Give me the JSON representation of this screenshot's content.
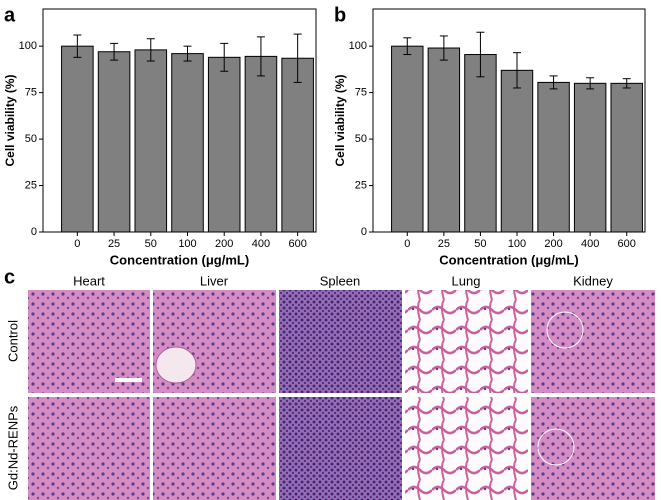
{
  "chart_data": [
    {
      "type": "bar",
      "panel_label": "a",
      "x_label": "Concentration (μg/mL)",
      "y_label": "Cell viability (%)",
      "categories": [
        "0",
        "25",
        "50",
        "100",
        "200",
        "400",
        "600"
      ],
      "values": [
        100,
        97,
        98,
        96,
        94,
        94.5,
        93.5
      ],
      "errors": [
        6,
        4.5,
        6,
        4,
        7.5,
        10.5,
        13
      ],
      "color": "#808080",
      "ylim": [
        0,
        120
      ],
      "yticks": [
        0,
        25,
        50,
        75,
        100
      ]
    },
    {
      "type": "bar",
      "panel_label": "b",
      "x_label": "Concentration (μg/mL)",
      "y_label": "Cell viability (%)",
      "categories": [
        "0",
        "25",
        "50",
        "100",
        "200",
        "400",
        "600"
      ],
      "values": [
        100,
        99,
        95.5,
        87,
        80.5,
        80,
        80
      ],
      "errors": [
        4.5,
        6.5,
        12,
        9.5,
        3.5,
        3,
        2.5
      ],
      "color": "#808080",
      "ylim": [
        0,
        120
      ],
      "yticks": [
        0,
        25,
        50,
        75,
        100
      ]
    }
  ],
  "panel_c": {
    "panel_label": "c",
    "columns": [
      "Heart",
      "Liver",
      "Spleen",
      "Lung",
      "Kidney"
    ],
    "rows": [
      "Control",
      "Gd:Nd-RENPs"
    ]
  }
}
